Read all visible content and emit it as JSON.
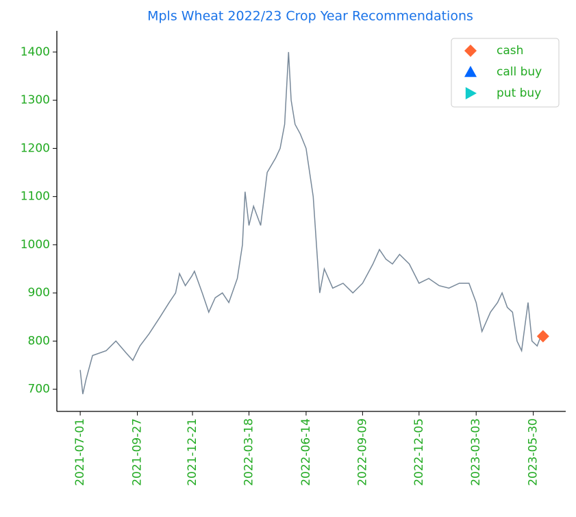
{
  "chart_data": {
    "type": "line",
    "title": "Mpls Wheat 2022/23 Crop Year Recommendations",
    "price": {
      "color": "#778899",
      "x": [
        "2021-07-01",
        "2021-07-05",
        "2021-07-10",
        "2021-07-20",
        "2021-08-10",
        "2021-08-25",
        "2021-09-10",
        "2021-09-20",
        "2021-10-01",
        "2021-10-15",
        "2021-11-01",
        "2021-11-15",
        "2021-11-25",
        "2021-12-01",
        "2021-12-10",
        "2021-12-20",
        "2021-12-24",
        "2022-01-05",
        "2022-01-15",
        "2022-01-25",
        "2022-02-05",
        "2022-02-15",
        "2022-02-28",
        "2022-03-08",
        "2022-03-12",
        "2022-03-18",
        "2022-03-25",
        "2022-04-05",
        "2022-04-15",
        "2022-04-28",
        "2022-05-05",
        "2022-05-12",
        "2022-05-18",
        "2022-05-22",
        "2022-05-28",
        "2022-06-05",
        "2022-06-14",
        "2022-06-25",
        "2022-07-05",
        "2022-07-12",
        "2022-07-25",
        "2022-08-10",
        "2022-08-25",
        "2022-09-09",
        "2022-09-25",
        "2022-10-05",
        "2022-10-15",
        "2022-10-25",
        "2022-11-05",
        "2022-11-20",
        "2022-12-05",
        "2022-12-20",
        "2023-01-05",
        "2023-01-20",
        "2023-02-05",
        "2023-02-20",
        "2023-03-03",
        "2023-03-12",
        "2023-03-25",
        "2023-04-05",
        "2023-04-12",
        "2023-04-20",
        "2023-04-28",
        "2023-05-05",
        "2023-05-12",
        "2023-05-18",
        "2023-05-22",
        "2023-05-28",
        "2023-06-05",
        "2023-06-12"
      ],
      "values": [
        740,
        690,
        720,
        770,
        780,
        800,
        775,
        760,
        790,
        815,
        850,
        880,
        900,
        940,
        915,
        935,
        945,
        900,
        860,
        890,
        900,
        880,
        930,
        1000,
        1110,
        1040,
        1080,
        1040,
        1150,
        1180,
        1200,
        1250,
        1400,
        1300,
        1250,
        1230,
        1200,
        1100,
        900,
        950,
        910,
        920,
        900,
        920,
        960,
        990,
        970,
        960,
        980,
        960,
        920,
        930,
        915,
        910,
        920,
        920,
        880,
        820,
        860,
        880,
        900,
        870,
        860,
        800,
        780,
        840,
        880,
        800,
        790,
        815
      ]
    },
    "series": [
      {
        "name": "cash",
        "color": "#ff6633",
        "marker": "diamond",
        "x": [
          "2023-06-14"
        ],
        "values": [
          810
        ]
      },
      {
        "name": "call buy",
        "color": "#0066ff",
        "marker": "triangle-up",
        "x": [],
        "values": []
      },
      {
        "name": "put buy",
        "color": "#11cccc",
        "marker": "triangle-right",
        "x": [],
        "values": []
      }
    ],
    "xlim": [
      "2021-05-26",
      "2023-07-19"
    ],
    "xticks": [
      "2021-07-01",
      "2021-09-27",
      "2021-12-21",
      "2022-03-18",
      "2022-06-14",
      "2022-09-09",
      "2022-12-05",
      "2023-03-03",
      "2023-05-30"
    ],
    "ylim": [
      654,
      1444
    ],
    "yticks": [
      700,
      800,
      900,
      1000,
      1100,
      1200,
      1300,
      1400
    ],
    "legend": "upper-right"
  }
}
